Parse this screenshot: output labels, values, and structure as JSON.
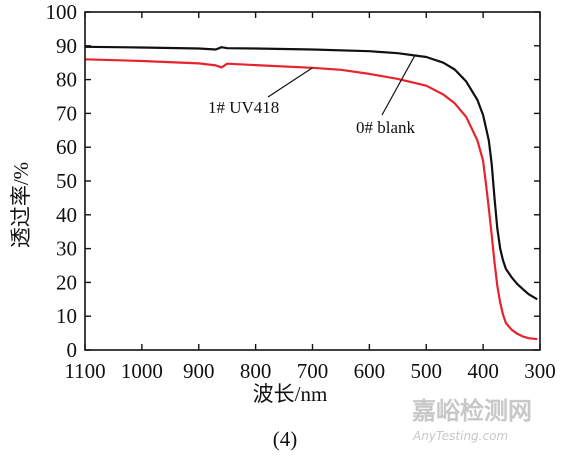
{
  "chart_data": {
    "type": "line",
    "xlabel": "波长/nm",
    "ylabel": "透过率/%",
    "caption": "(4)",
    "xlim": [
      1100,
      300
    ],
    "ylim": [
      0,
      100
    ],
    "x_reversed": true,
    "grid": false,
    "xticks": [
      1100,
      1000,
      900,
      800,
      700,
      600,
      500,
      400,
      300
    ],
    "yticks": [
      0,
      10,
      20,
      30,
      40,
      50,
      60,
      70,
      80,
      90,
      100
    ],
    "series": [
      {
        "name": "0# blank",
        "color": "#111111",
        "x": [
          1100,
          1000,
          900,
          870,
          860,
          850,
          800,
          700,
          600,
          550,
          500,
          470,
          450,
          430,
          410,
          400,
          390,
          385,
          380,
          375,
          370,
          365,
          360,
          350,
          340,
          330,
          320,
          310,
          305
        ],
        "y": [
          89.7,
          89.5,
          89.2,
          88.9,
          89.6,
          89.3,
          89.2,
          88.9,
          88.4,
          87.8,
          86.7,
          85.0,
          83.0,
          79.5,
          74.0,
          69.5,
          62.0,
          55.0,
          45.0,
          36.0,
          30.0,
          26.5,
          24.0,
          21.5,
          19.5,
          18.0,
          16.5,
          15.5,
          15.0
        ]
      },
      {
        "name": "1# UV418",
        "color": "#e8232e",
        "x": [
          1100,
          1000,
          900,
          870,
          860,
          850,
          800,
          700,
          650,
          600,
          550,
          500,
          470,
          450,
          430,
          420,
          410,
          400,
          395,
          390,
          385,
          380,
          375,
          370,
          365,
          360,
          350,
          340,
          330,
          320,
          310,
          305
        ],
        "y": [
          86.0,
          85.5,
          84.8,
          84.2,
          83.6,
          84.7,
          84.3,
          83.5,
          82.9,
          81.7,
          80.2,
          78.2,
          75.6,
          73.0,
          69.0,
          65.5,
          62.0,
          56.0,
          49.0,
          42.0,
          34.0,
          26.0,
          19.0,
          14.0,
          10.5,
          8.0,
          6.0,
          4.8,
          4.0,
          3.5,
          3.3,
          3.2
        ]
      }
    ],
    "annotations": [
      {
        "text": "1# UV418",
        "series": "1# UV418"
      },
      {
        "text": "0# blank",
        "series": "0# blank"
      }
    ]
  },
  "watermark": {
    "cn": "嘉峪检测网",
    "en": "AnyTesting.com"
  }
}
